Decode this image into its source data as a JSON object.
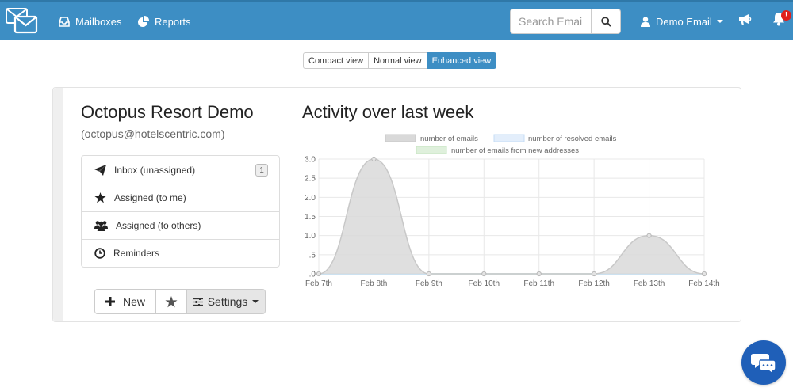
{
  "nav": {
    "mailboxes_label": "Mailboxes",
    "reports_label": "Reports",
    "search_placeholder": "Search Emails",
    "user_label": "Demo Email",
    "notification_badge": "!"
  },
  "views": [
    "Compact view",
    "Normal view",
    "Enhanced view"
  ],
  "active_view": "Enhanced view",
  "mailbox": {
    "name": "Octopus Resort Demo",
    "email": "(octopus@hotelscentric.com)",
    "folders": [
      {
        "label": "Inbox (unassigned)",
        "icon": "paper-plane-icon",
        "count": "1"
      },
      {
        "label": "Assigned (to me)",
        "icon": "star-icon"
      },
      {
        "label": "Assigned (to others)",
        "icon": "users-icon"
      },
      {
        "label": "Reminders",
        "icon": "clock-icon"
      }
    ],
    "actions": {
      "new_label": "New",
      "settings_label": "Settings"
    }
  },
  "chart_data": {
    "type": "area",
    "title": "Activity over last week",
    "categories": [
      "Feb 7th",
      "Feb 8th",
      "Feb 9th",
      "Feb 10th",
      "Feb 11th",
      "Feb 12th",
      "Feb 13th",
      "Feb 14th"
    ],
    "series": [
      {
        "name": "number of emails",
        "values": [
          0,
          3,
          0,
          0,
          0,
          0,
          1,
          0
        ],
        "color": "#d9d9d9",
        "stroke": "#c8c8c8"
      },
      {
        "name": "number of resolved emails",
        "values": [
          0,
          0,
          0,
          0,
          0,
          0,
          0,
          0
        ],
        "color": "#e3eefb",
        "stroke": "#c5dcf5"
      },
      {
        "name": "number of emails from new addresses",
        "values": [
          0,
          0,
          0,
          0,
          0,
          0,
          0,
          0
        ],
        "color": "#dff0dc",
        "stroke": "#c6e4c0"
      }
    ],
    "ylim": [
      0,
      3
    ],
    "yticks": [
      ".0",
      ".5",
      "1.0",
      "1.5",
      "2.0",
      "2.5",
      "3.0"
    ],
    "grid": true,
    "legend": "top"
  },
  "colors": {
    "navbar": "#3d8ec4",
    "accent": "#3d8ec4",
    "chat": "#1f5fb8"
  }
}
